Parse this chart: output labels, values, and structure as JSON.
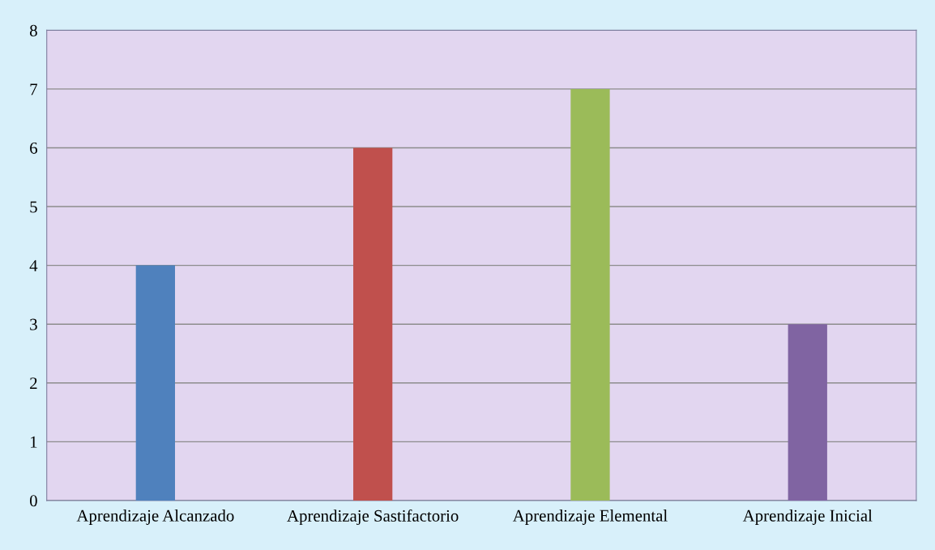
{
  "chart_data": {
    "type": "bar",
    "categories": [
      "Aprendizaje Alcanzado",
      "Aprendizaje Sastifactorio",
      "Aprendizaje Elemental",
      "Aprendizaje Inicial"
    ],
    "values": [
      4,
      6,
      7,
      3
    ],
    "colors": [
      "#4f81bd",
      "#c0504d",
      "#9bbb59",
      "#8064a2"
    ],
    "ylim": [
      0,
      8
    ],
    "yticks": [
      0,
      1,
      2,
      3,
      4,
      5,
      6,
      7,
      8
    ],
    "grid": "y",
    "legend": false
  }
}
